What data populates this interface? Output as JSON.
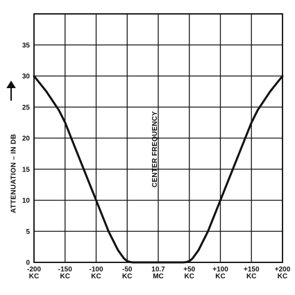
{
  "chart_data": {
    "type": "line",
    "ylabel": "ATTENUATION – IN DB",
    "annotation": "CENTER FREQUENCY",
    "x_ticks": [
      {
        "value": -200,
        "lines": [
          "-200",
          "KC"
        ]
      },
      {
        "value": -150,
        "lines": [
          "-150",
          "KC"
        ]
      },
      {
        "value": -100,
        "lines": [
          "-100",
          "KC"
        ]
      },
      {
        "value": -50,
        "lines": [
          "-50",
          "KC"
        ]
      },
      {
        "value": 0,
        "lines": [
          "10.7",
          "MC"
        ]
      },
      {
        "value": 50,
        "lines": [
          "+50",
          "KC"
        ]
      },
      {
        "value": 100,
        "lines": [
          "+100",
          "KC"
        ]
      },
      {
        "value": 150,
        "lines": [
          "+150",
          "KC"
        ]
      },
      {
        "value": 200,
        "lines": [
          "+200",
          "KC"
        ]
      }
    ],
    "y_ticks": [
      0,
      5,
      10,
      15,
      20,
      25,
      30,
      35
    ],
    "xlim": [
      -200,
      200
    ],
    "ylim": [
      0,
      40
    ],
    "grid": true,
    "series": [
      {
        "x": [
          -200,
          -180,
          -160,
          -150,
          -140,
          -120,
          -100,
          -80,
          -65,
          -55,
          -50,
          -45,
          -40,
          0,
          40,
          45,
          50,
          55,
          65,
          80,
          100,
          120,
          140,
          150,
          160,
          180,
          200
        ],
        "y": [
          30,
          27.5,
          24.5,
          22.5,
          20,
          15,
          10,
          5,
          2,
          0.6,
          0.2,
          0.05,
          0,
          0,
          0,
          0.05,
          0.2,
          0.6,
          2,
          5,
          10,
          15,
          20,
          22.5,
          24.5,
          27.5,
          30
        ]
      }
    ]
  }
}
